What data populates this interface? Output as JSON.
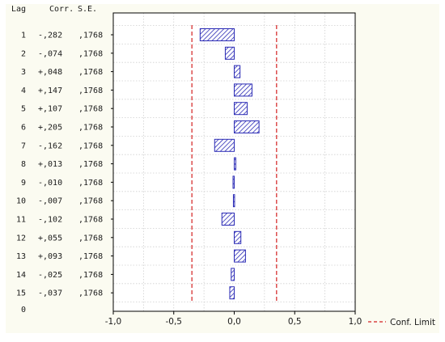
{
  "chart_data": {
    "type": "bar",
    "orientation": "horizontal",
    "columns": {
      "lag": "Lag",
      "corr": "Corr.",
      "se": "S.E."
    },
    "rows": [
      {
        "lag": "1",
        "corr_text": "-,282",
        "se_text": ",1768",
        "value": -0.282
      },
      {
        "lag": "2",
        "corr_text": "-,074",
        "se_text": ",1768",
        "value": -0.074
      },
      {
        "lag": "3",
        "corr_text": "+,048",
        "se_text": ",1768",
        "value": 0.048
      },
      {
        "lag": "4",
        "corr_text": "+,147",
        "se_text": ",1768",
        "value": 0.147
      },
      {
        "lag": "5",
        "corr_text": "+,107",
        "se_text": ",1768",
        "value": 0.107
      },
      {
        "lag": "6",
        "corr_text": "+,205",
        "se_text": ",1768",
        "value": 0.205
      },
      {
        "lag": "7",
        "corr_text": "-,162",
        "se_text": ",1768",
        "value": -0.162
      },
      {
        "lag": "8",
        "corr_text": "+,013",
        "se_text": ",1768",
        "value": 0.013
      },
      {
        "lag": "9",
        "corr_text": "-,010",
        "se_text": ",1768",
        "value": -0.01
      },
      {
        "lag": "10",
        "corr_text": "-,007",
        "se_text": ",1768",
        "value": -0.007
      },
      {
        "lag": "11",
        "corr_text": "-,102",
        "se_text": ",1768",
        "value": -0.102
      },
      {
        "lag": "12",
        "corr_text": "+,055",
        "se_text": ",1768",
        "value": 0.055
      },
      {
        "lag": "13",
        "corr_text": "+,093",
        "se_text": ",1768",
        "value": 0.093
      },
      {
        "lag": "14",
        "corr_text": "-,025",
        "se_text": ",1768",
        "value": -0.025
      },
      {
        "lag": "15",
        "corr_text": "-,037",
        "se_text": ",1768",
        "value": -0.037
      }
    ],
    "zero_row_label": "0",
    "x_ticks": [
      {
        "value": -1.0,
        "label": "-1,0"
      },
      {
        "value": -0.5,
        "label": "-0,5"
      },
      {
        "value": 0.0,
        "label": "0,0"
      },
      {
        "value": 0.5,
        "label": "0,5"
      },
      {
        "value": 1.0,
        "label": "1,0"
      }
    ],
    "xlim": [
      -1.0,
      1.0
    ],
    "conf_limit": 0.35,
    "legend": {
      "label": "Conf. Limit",
      "placement": "bottom-right"
    },
    "grid": true,
    "colors": {
      "bar_stroke": "#2b2bb5",
      "bar_hatch": "#2b2bb5",
      "bar_fill": "#ffffff",
      "conf_line": "#d42020",
      "grid": "#cfcfcf",
      "background": "#fbfbf1",
      "plot_background": "#ffffff"
    }
  }
}
